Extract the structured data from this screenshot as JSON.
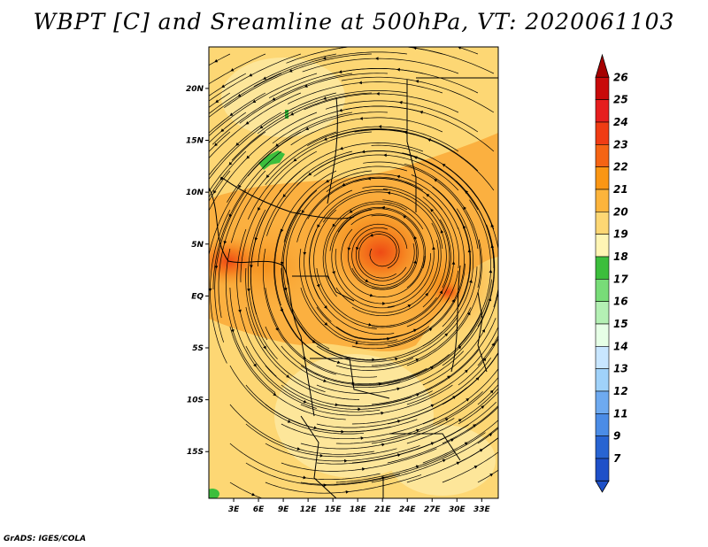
{
  "title": "WBPT [C] and Sreamline at 500hPa, VT: 2020061103",
  "credit": "GrADS: IGES/COLA",
  "map": {
    "lat_range": [
      -19.5,
      24
    ],
    "lon_range": [
      0,
      35
    ],
    "lat_ticks": [
      {
        "value": 20,
        "label": "20N"
      },
      {
        "value": 15,
        "label": "15N"
      },
      {
        "value": 10,
        "label": "10N"
      },
      {
        "value": 5,
        "label": "5N"
      },
      {
        "value": 0,
        "label": "EQ"
      },
      {
        "value": -5,
        "label": "5S"
      },
      {
        "value": -10,
        "label": "10S"
      },
      {
        "value": -15,
        "label": "15S"
      }
    ],
    "lon_ticks": [
      {
        "value": 3,
        "label": "3E"
      },
      {
        "value": 6,
        "label": "6E"
      },
      {
        "value": 9,
        "label": "9E"
      },
      {
        "value": 12,
        "label": "12E"
      },
      {
        "value": 15,
        "label": "15E"
      },
      {
        "value": 18,
        "label": "18E"
      },
      {
        "value": 21,
        "label": "21E"
      },
      {
        "value": 24,
        "label": "24E"
      },
      {
        "value": 27,
        "label": "27E"
      },
      {
        "value": 30,
        "label": "30E"
      },
      {
        "value": 33,
        "label": "33E"
      }
    ]
  },
  "colorbar": {
    "levels": [
      {
        "label": "26",
        "color": "#a50000"
      },
      {
        "label": "25",
        "color": "#c80a0a"
      },
      {
        "label": "24",
        "color": "#e61e1e"
      },
      {
        "label": "23",
        "color": "#f03c14"
      },
      {
        "label": "22",
        "color": "#f56414"
      },
      {
        "label": "21",
        "color": "#fa9614"
      },
      {
        "label": "20",
        "color": "#fcb43c"
      },
      {
        "label": "19",
        "color": "#fdd774"
      },
      {
        "label": "18",
        "color": "#fff5b4"
      },
      {
        "label": "17",
        "color": "#3cbe3c"
      },
      {
        "label": "16",
        "color": "#78dc78"
      },
      {
        "label": "15",
        "color": "#b4f0b4"
      },
      {
        "label": "14",
        "color": "#e6ffe6"
      },
      {
        "label": "13",
        "color": "#c8e6ff"
      },
      {
        "label": "12",
        "color": "#a0d2fa"
      },
      {
        "label": "11",
        "color": "#6eaaf0"
      },
      {
        "label": "9",
        "color": "#4b8ce6"
      },
      {
        "label": "7",
        "color": "#2864d2"
      }
    ],
    "bottom_color": "#1e50c8"
  }
}
